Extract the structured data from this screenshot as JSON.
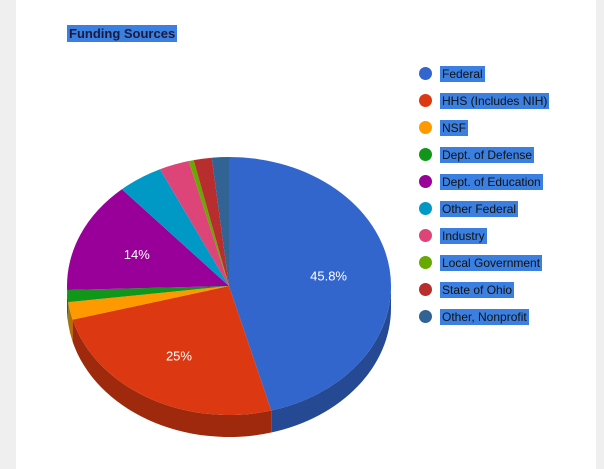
{
  "chart_data": {
    "type": "pie",
    "title": "Funding Sources",
    "three_d": true,
    "legend_position": "right",
    "slices": [
      {
        "label": "Federal",
        "value": 45.8,
        "color": "#3366cc",
        "display_label": "45.8%"
      },
      {
        "label": "HHS (Includes NIH)",
        "value": 25,
        "color": "#dc3912",
        "display_label": "25%"
      },
      {
        "label": "NSF",
        "value": 2.2,
        "color": "#ff9900",
        "display_label": ""
      },
      {
        "label": "Dept. of Defense",
        "value": 1.5,
        "color": "#109618",
        "display_label": ""
      },
      {
        "label": "Dept. of Education",
        "value": 14,
        "color": "#990099",
        "display_label": "14%"
      },
      {
        "label": "Other Federal",
        "value": 4.5,
        "color": "#0099c6",
        "display_label": ""
      },
      {
        "label": "Industry",
        "value": 3,
        "color": "#dd4477",
        "display_label": ""
      },
      {
        "label": "Local Government",
        "value": 0.5,
        "color": "#66aa00",
        "display_label": ""
      },
      {
        "label": "State of Ohio",
        "value": 1.8,
        "color": "#b82e2e",
        "display_label": ""
      },
      {
        "label": "Other, Nonprofit",
        "value": 1.7,
        "color": "#316395",
        "display_label": ""
      }
    ]
  }
}
